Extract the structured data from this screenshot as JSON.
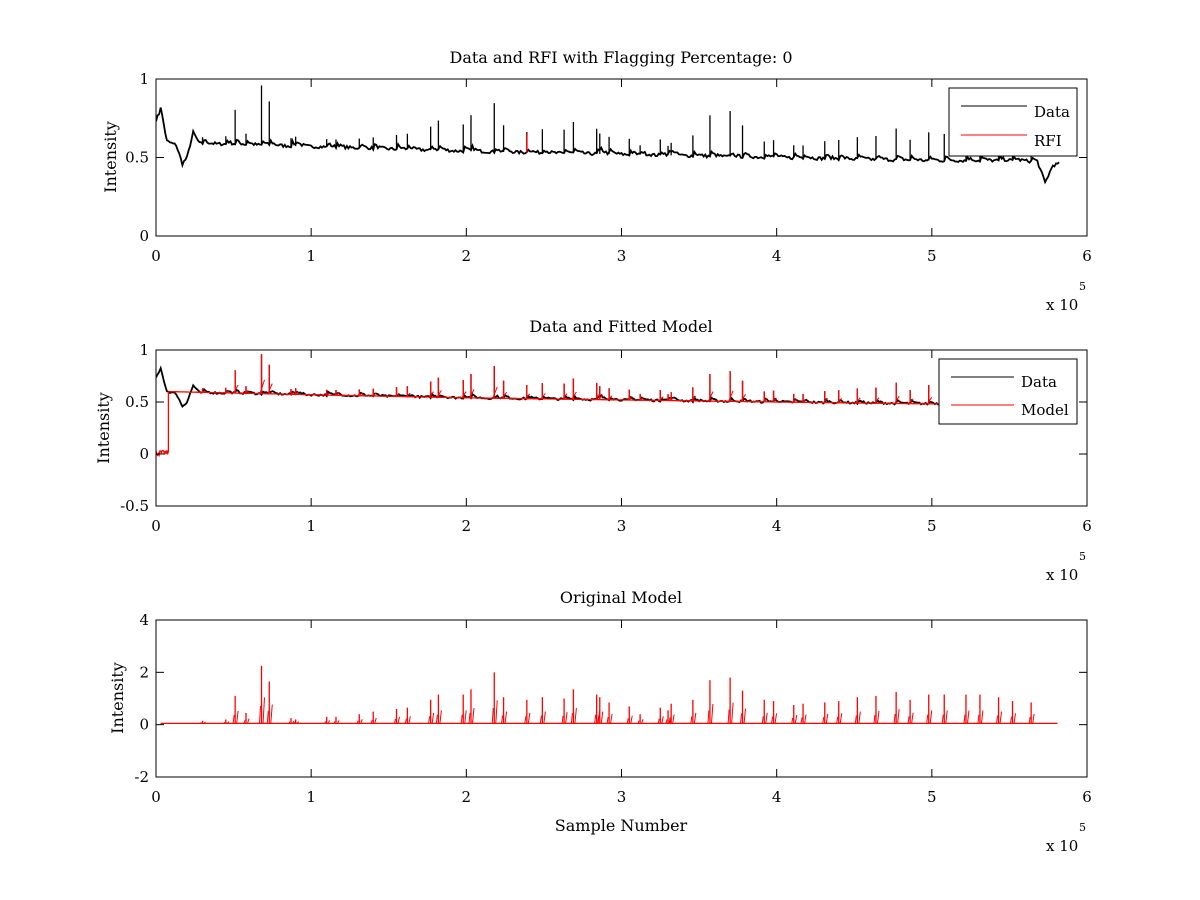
{
  "chart_data": [
    {
      "type": "line",
      "title": "Data and RFI with Flagging Percentage: 0",
      "ylabel": "Intensity",
      "xlabel": "",
      "xlim": [
        0,
        600000
      ],
      "ylim": [
        0,
        1
      ],
      "x_ticks": [
        0,
        1,
        2,
        3,
        4,
        5,
        6
      ],
      "y_ticks": [
        0,
        0.5,
        1
      ],
      "x_multiplier": {
        "base": "x 10",
        "exponent": "5"
      },
      "grid": false,
      "legend": {
        "placement": "top-right",
        "entries": [
          "Data",
          "RFI"
        ]
      },
      "series": [
        {
          "name": "Data",
          "color": "#000000",
          "kind": "signal",
          "x_start": 0,
          "x_end": 582000,
          "baseline": [
            [
              0,
              0.74
            ],
            [
              3000,
              0.8
            ],
            [
              7000,
              0.6
            ],
            [
              13000,
              0.58
            ],
            [
              17000,
              0.46
            ],
            [
              20000,
              0.5
            ],
            [
              24000,
              0.66
            ],
            [
              28000,
              0.59
            ],
            [
              100000,
              0.57
            ],
            [
              200000,
              0.54
            ],
            [
              300000,
              0.52
            ],
            [
              400000,
              0.5
            ],
            [
              500000,
              0.48
            ],
            [
              560000,
              0.48
            ],
            [
              568000,
              0.47
            ],
            [
              573000,
              0.34
            ],
            [
              578000,
              0.45
            ],
            [
              582000,
              0.46
            ]
          ],
          "spike_heights_relative": true
        },
        {
          "name": "RFI",
          "color": "#ff0000",
          "kind": "flags",
          "points": [
            [
              239000,
              0.65
            ]
          ]
        }
      ]
    },
    {
      "type": "line",
      "title": "Data and Fitted Model",
      "ylabel": "Intensity",
      "xlabel": "",
      "xlim": [
        0,
        600000
      ],
      "ylim": [
        -0.5,
        1
      ],
      "x_ticks": [
        0,
        1,
        2,
        3,
        4,
        5,
        6
      ],
      "y_ticks": [
        -0.5,
        0,
        0.5,
        1
      ],
      "x_multiplier": {
        "base": "x 10",
        "exponent": "5"
      },
      "grid": false,
      "legend": {
        "placement": "top-right",
        "entries": [
          "Data",
          "Model"
        ]
      },
      "series": [
        {
          "name": "Data",
          "color": "#000000",
          "kind": "signal",
          "x_start": 0,
          "x_end": 510000,
          "baseline": [
            [
              0,
              0.74
            ],
            [
              3000,
              0.8
            ],
            [
              7000,
              0.6
            ],
            [
              13000,
              0.58
            ],
            [
              17000,
              0.46
            ],
            [
              20000,
              0.5
            ],
            [
              24000,
              0.66
            ],
            [
              28000,
              0.59
            ],
            [
              100000,
              0.57
            ],
            [
              200000,
              0.54
            ],
            [
              300000,
              0.52
            ],
            [
              400000,
              0.5
            ],
            [
              510000,
              0.48
            ]
          ]
        },
        {
          "name": "Model",
          "color": "#ff0000",
          "kind": "model",
          "x_start": 0,
          "x_end": 510000,
          "offset_segment": [
            [
              0,
              0.0
            ],
            [
              8000,
              0.02
            ]
          ],
          "baseline": [
            [
              8000,
              0.6
            ],
            [
              100000,
              0.57
            ],
            [
              200000,
              0.54
            ],
            [
              300000,
              0.52
            ],
            [
              400000,
              0.5
            ],
            [
              510000,
              0.48
            ]
          ]
        }
      ]
    },
    {
      "type": "line",
      "title": "Original Model",
      "ylabel": "Intensity",
      "xlabel": "Sample Number",
      "xlim": [
        0,
        600000
      ],
      "ylim": [
        -2,
        4
      ],
      "x_ticks": [
        0,
        1,
        2,
        3,
        4,
        5,
        6
      ],
      "y_ticks": [
        -2,
        0,
        2,
        4
      ],
      "x_multiplier": {
        "base": "x 10",
        "exponent": "5"
      },
      "grid": false,
      "legend": null,
      "series": [
        {
          "color": "#ff0000",
          "kind": "model-only",
          "x_start": 3000,
          "x_end": 581000,
          "baseline": [
            [
              3000,
              0.05
            ],
            [
              581000,
              0.05
            ]
          ]
        }
      ]
    }
  ],
  "spikes": {
    "comment_free": true,
    "positions": [
      2000,
      30000,
      45000,
      51000,
      58000,
      68000,
      73000,
      87000,
      90000,
      110000,
      116000,
      131000,
      140000,
      155000,
      162000,
      177000,
      182000,
      198000,
      203000,
      218000,
      224000,
      239000,
      249000,
      263000,
      269000,
      284000,
      286000,
      292000,
      305000,
      312000,
      325000,
      330000,
      332000,
      346000,
      357000,
      370000,
      378000,
      392000,
      398000,
      411000,
      417000,
      431000,
      440000,
      452000,
      464000,
      477000,
      486000,
      498000,
      508000,
      522000,
      531000,
      543000,
      552000,
      564000
    ],
    "heights_top": [
      0.0,
      0.04,
      0.05,
      0.22,
      0.07,
      0.38,
      0.28,
      0.05,
      0.06,
      0.05,
      0.05,
      0.06,
      0.07,
      0.09,
      0.1,
      0.15,
      0.19,
      0.17,
      0.23,
      0.31,
      0.17,
      0.13,
      0.15,
      0.15,
      0.2,
      0.16,
      0.13,
      0.11,
      0.1,
      0.06,
      0.1,
      0.06,
      0.08,
      0.13,
      0.26,
      0.29,
      0.2,
      0.1,
      0.11,
      0.08,
      0.08,
      0.11,
      0.12,
      0.14,
      0.15,
      0.2,
      0.13,
      0.18,
      0.17,
      0.15,
      0.15,
      0.12,
      0.11,
      0.1
    ],
    "heights_bottom": [
      0.0,
      0.1,
      0.15,
      1.05,
      0.4,
      2.2,
      1.6,
      0.2,
      0.15,
      0.25,
      0.25,
      0.35,
      0.45,
      0.55,
      0.6,
      0.9,
      1.1,
      1.1,
      1.3,
      1.95,
      1.0,
      0.9,
      1.0,
      0.95,
      1.3,
      1.1,
      1.0,
      0.8,
      0.65,
      0.35,
      0.6,
      0.5,
      0.75,
      0.9,
      1.65,
      1.75,
      1.25,
      0.9,
      0.85,
      0.7,
      0.75,
      0.8,
      0.85,
      1.0,
      1.05,
      1.2,
      0.9,
      1.1,
      1.1,
      1.1,
      1.1,
      1.0,
      0.85,
      0.8
    ]
  }
}
